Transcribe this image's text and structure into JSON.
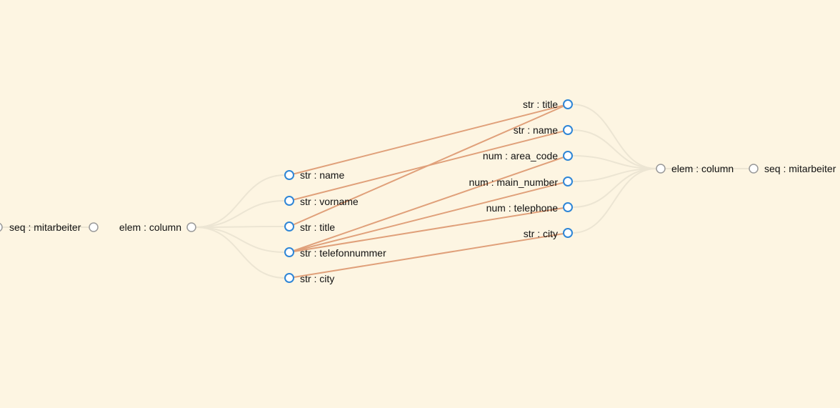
{
  "source": {
    "root": "seq : mitarbeiter",
    "column": "elem : column",
    "fields": [
      "str : name",
      "str : vorname",
      "str : title",
      "str : telefonnummer",
      "str : city"
    ]
  },
  "target": {
    "root": "seq : mitarbeiter",
    "column": "elem : column",
    "fields": [
      "str : title",
      "str : name",
      "num : area_code",
      "num : main_number",
      "num : telephone",
      "str : city"
    ]
  },
  "mappings": [
    {
      "from": "str : name",
      "to": "str : title"
    },
    {
      "from": "str : vorname",
      "to": "str : name"
    },
    {
      "from": "str : title",
      "to": "str : title"
    },
    {
      "from": "str : telefonnummer",
      "to": "num : area_code"
    },
    {
      "from": "str : telefonnummer",
      "to": "num : main_number"
    },
    {
      "from": "str : telefonnummer",
      "to": "num : telephone"
    },
    {
      "from": "str : city",
      "to": "str : city"
    }
  ],
  "colors": {
    "background": "#fdf5e2",
    "tree_link": "#ece5d3",
    "mapping_link": "#e0a07a",
    "leaf_node": "#2f86d6",
    "inner_node": "#999999"
  }
}
